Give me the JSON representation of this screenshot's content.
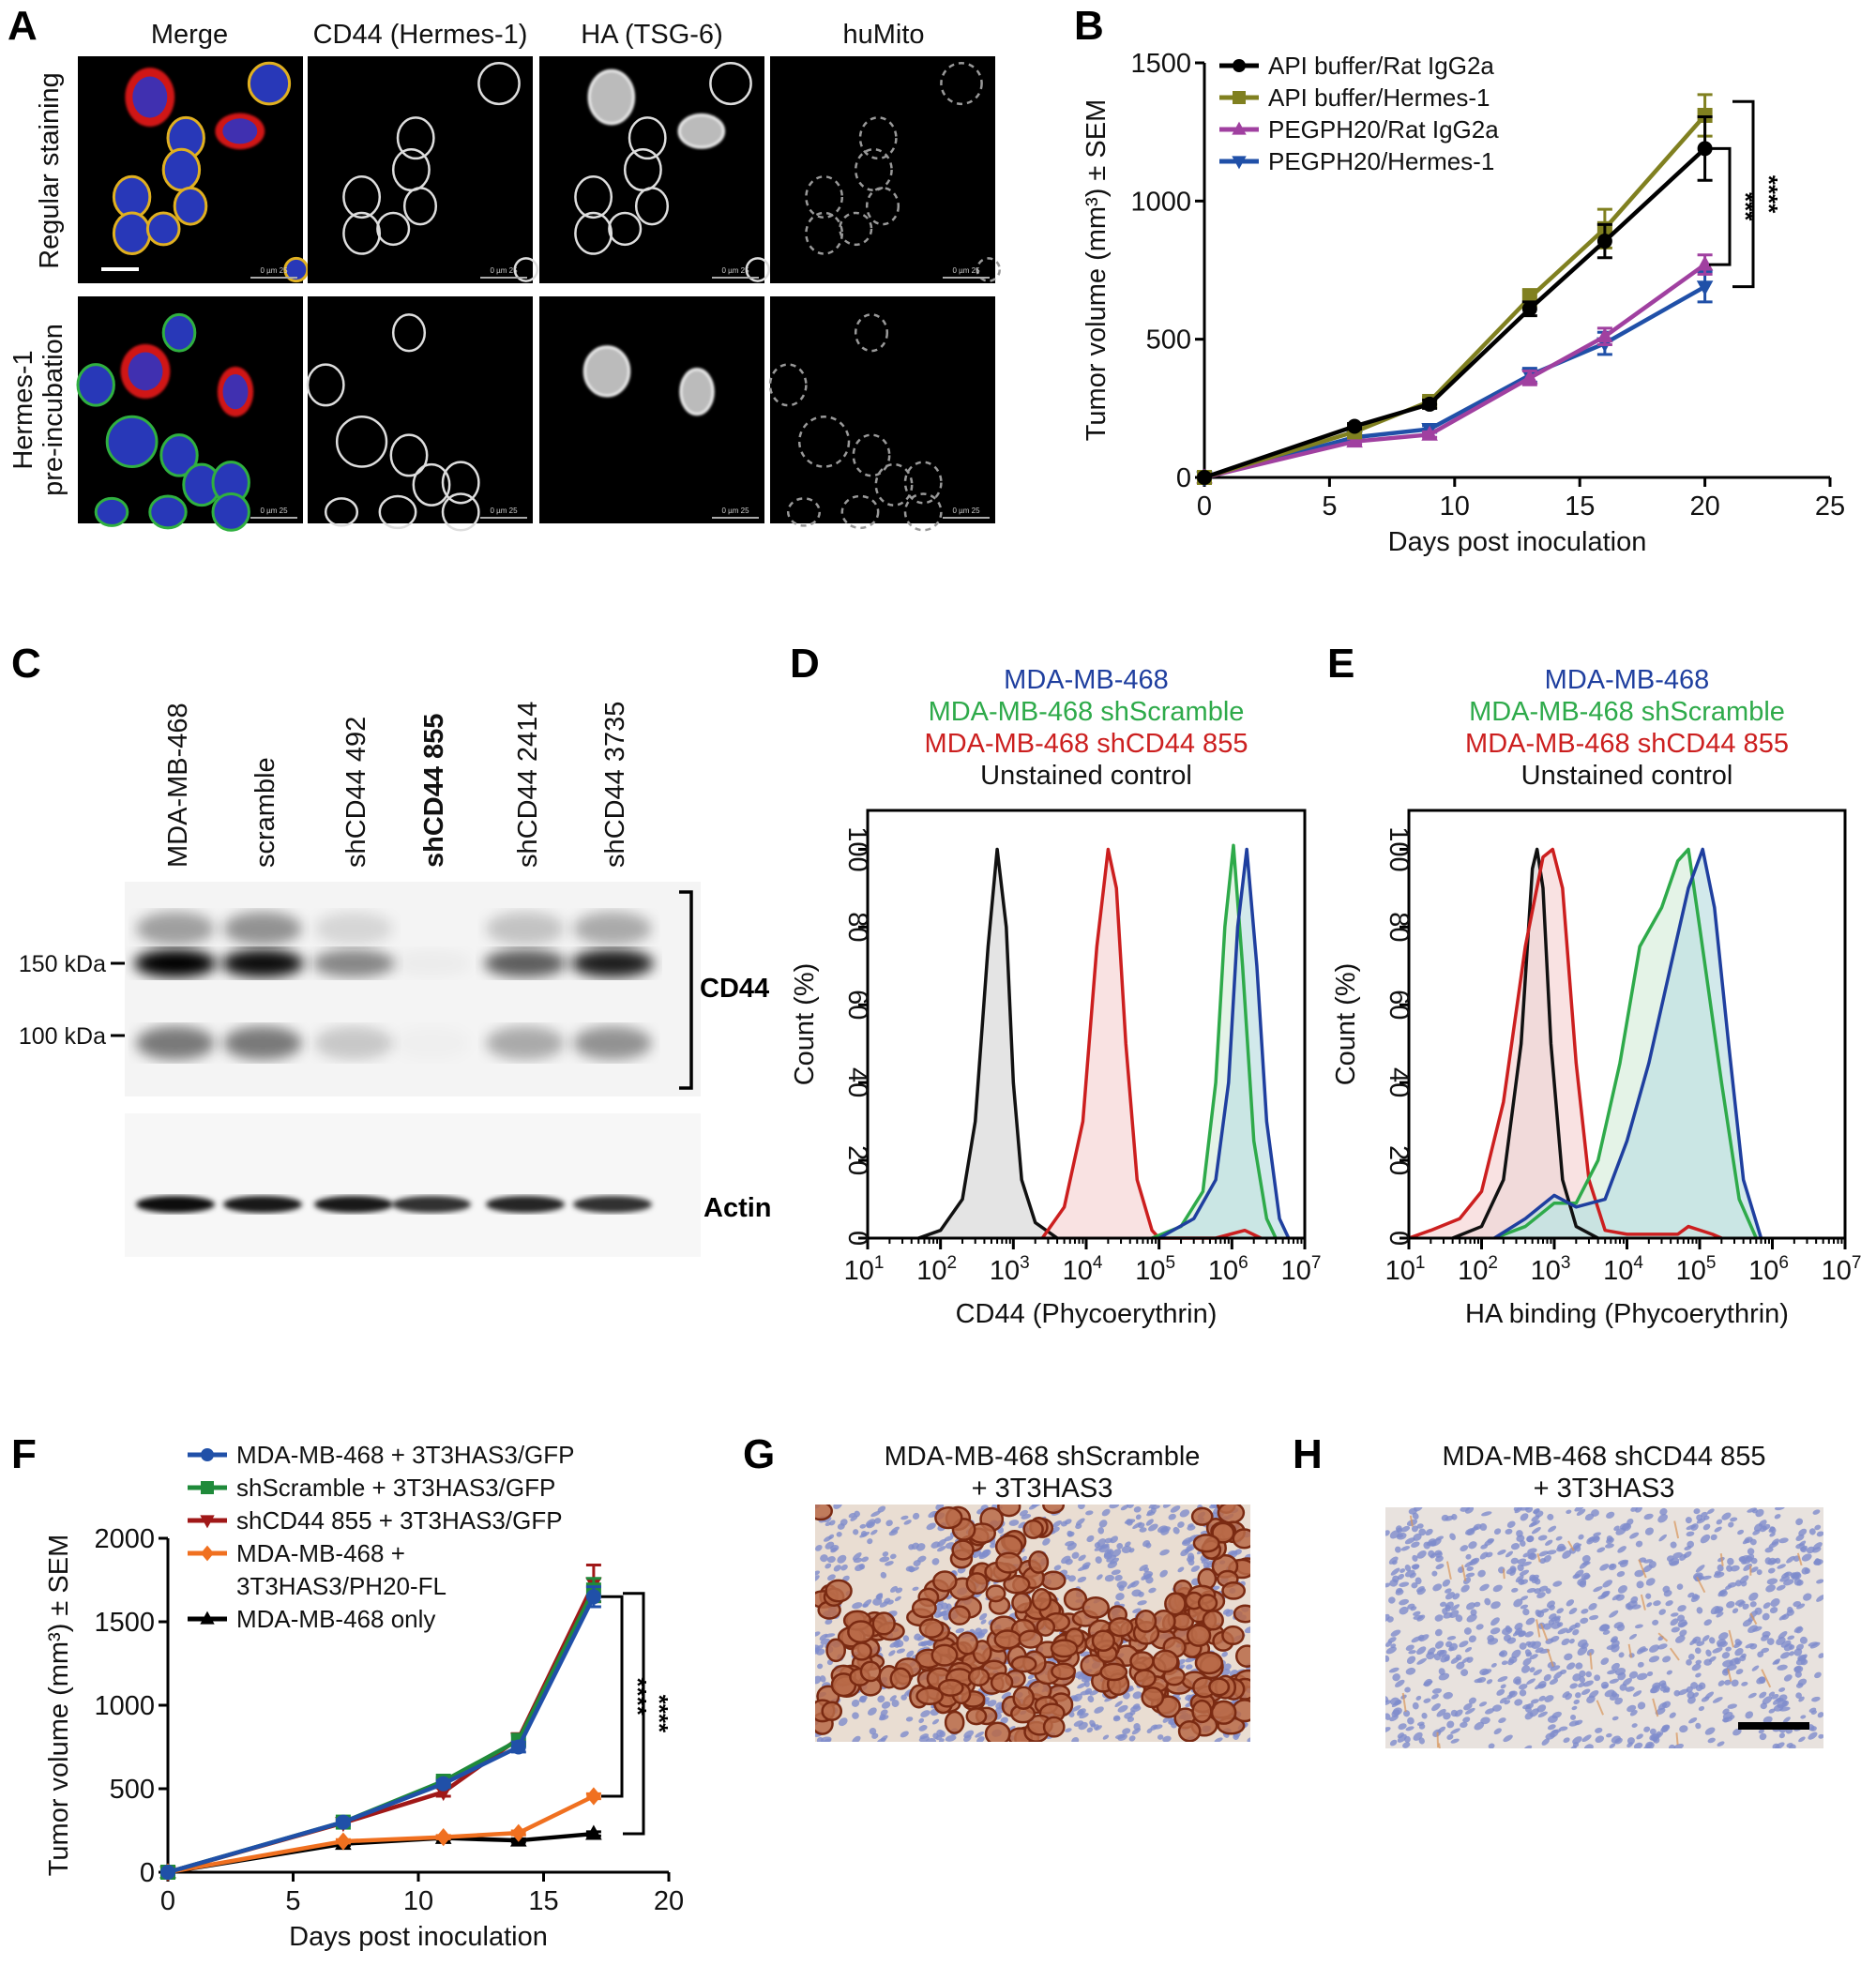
{
  "panels": {
    "A": {
      "label": "A",
      "columns": [
        "Merge",
        "CD44 (Hermes-1)",
        "HA (TSG-6)",
        "huMito"
      ],
      "rows": [
        {
          "lines": [
            "Regular staining"
          ]
        },
        {
          "lines": [
            "Hermes-1",
            "pre-incubation"
          ]
        }
      ],
      "scale_bar_text": "0   µm   25"
    },
    "B": {
      "label": "B"
    },
    "C": {
      "label": "C",
      "lanes": [
        "MDA-MB-468",
        "scramble",
        "shCD44 492",
        "shCD44 855",
        "shCD44 2414",
        "shCD44 3735"
      ],
      "bold_lane": "shCD44 855",
      "markers": [
        "150 kDa",
        "100 kDa"
      ],
      "bracket_label": "CD44",
      "loading_label": "Actin",
      "band_intensity": {
        "cd44_upper_smear": [
          0.35,
          0.4,
          0.12,
          0.0,
          0.2,
          0.3
        ],
        "cd44_150": [
          1.0,
          0.95,
          0.45,
          0.03,
          0.62,
          0.88
        ],
        "cd44_100": [
          0.5,
          0.5,
          0.18,
          0.02,
          0.3,
          0.4
        ],
        "actin": [
          0.95,
          0.9,
          0.9,
          0.8,
          0.85,
          0.8
        ]
      }
    },
    "D": {
      "label": "D",
      "title_lines": [
        {
          "text": "MDA-MB-468",
          "color": "#1f3f9f"
        },
        {
          "text": "MDA-MB-468 shScramble",
          "color": "#2eaa4a"
        },
        {
          "text": "MDA-MB-468 shCD44 855",
          "color": "#cc1f1f"
        },
        {
          "text": "Unstained control",
          "color": "#111111"
        }
      ]
    },
    "E": {
      "label": "E",
      "title_lines": [
        {
          "text": "MDA-MB-468",
          "color": "#1f3f9f"
        },
        {
          "text": "MDA-MB-468 shScramble",
          "color": "#2eaa4a"
        },
        {
          "text": "MDA-MB-468 shCD44 855",
          "color": "#cc1f1f"
        },
        {
          "text": "Unstained control",
          "color": "#111111"
        }
      ]
    },
    "F": {
      "label": "F"
    },
    "G": {
      "label": "G",
      "title_lines": [
        "MDA-MB-468 shScramble",
        "+ 3T3HAS3"
      ]
    },
    "H": {
      "label": "H",
      "title_lines": [
        "MDA-MB-468 shCD44 855",
        "+ 3T3HAS3"
      ]
    }
  },
  "chart_data": [
    {
      "panel": "B",
      "type": "line",
      "xlabel": "Days post inoculation",
      "ylabel": "Tumor volume (mm³) ± SEM",
      "xlim": [
        0,
        25
      ],
      "ylim": [
        0,
        1500
      ],
      "xticks": [
        0,
        5,
        10,
        15,
        20,
        25
      ],
      "yticks": [
        0,
        500,
        1000,
        1500
      ],
      "legend": "top-left",
      "grid": false,
      "x": [
        0,
        6,
        9,
        13,
        16,
        20
      ],
      "series": [
        {
          "name": "API buffer/Rat IgG2a",
          "color": "#000000",
          "marker": "circle",
          "values": [
            0,
            185,
            265,
            610,
            855,
            1190
          ],
          "sem": [
            0,
            10,
            15,
            25,
            60,
            115
          ]
        },
        {
          "name": "API buffer/Hermes-1",
          "color": "#808020",
          "marker": "square",
          "values": [
            0,
            165,
            275,
            650,
            900,
            1310
          ],
          "sem": [
            0,
            12,
            15,
            30,
            70,
            75
          ]
        },
        {
          "name": "PEGPH20/Rat IgG2a",
          "color": "#a040a0",
          "marker": "triangle-up",
          "values": [
            0,
            130,
            155,
            360,
            510,
            770
          ],
          "sem": [
            0,
            10,
            10,
            25,
            30,
            35
          ]
        },
        {
          "name": "PEGPH20/Hermes-1",
          "color": "#2050a8",
          "marker": "triangle-down",
          "values": [
            0,
            145,
            175,
            370,
            485,
            690
          ],
          "sem": [
            0,
            10,
            12,
            25,
            40,
            55
          ]
        }
      ],
      "significance": [
        {
          "label": "***",
          "from_series": 0,
          "to_series": 2
        },
        {
          "label": "****",
          "from_series": 1,
          "to_series": 3
        }
      ]
    },
    {
      "panel": "D",
      "type": "area",
      "xlabel": "CD44 (Phycoerythrin)",
      "ylabel": "Count (%)",
      "xscale": "log",
      "xlim": [
        10,
        10000000
      ],
      "ylim": [
        0,
        110
      ],
      "x_tick_base": "10",
      "x_tick_exponents": [
        1,
        2,
        3,
        4,
        5,
        6,
        7
      ],
      "yticks": [
        0,
        20,
        40,
        60,
        80,
        100
      ],
      "series": [
        {
          "name": "Unstained control",
          "color": "#111111",
          "fill": "#d9d9d9",
          "points": [
            [
              50,
              0
            ],
            [
              100,
              2
            ],
            [
              200,
              10
            ],
            [
              300,
              30
            ],
            [
              450,
              75
            ],
            [
              600,
              100
            ],
            [
              800,
              80
            ],
            [
              1000,
              40
            ],
            [
              1300,
              15
            ],
            [
              2000,
              4
            ],
            [
              4000,
              0
            ]
          ]
        },
        {
          "name": "MDA-MB-468 shCD44 855",
          "color": "#cc1f1f",
          "fill": "#f6d6d6",
          "points": [
            [
              2500,
              0
            ],
            [
              5000,
              8
            ],
            [
              9000,
              30
            ],
            [
              14000,
              75
            ],
            [
              20000,
              100
            ],
            [
              26000,
              90
            ],
            [
              35000,
              50
            ],
            [
              50000,
              15
            ],
            [
              80000,
              2
            ],
            [
              100000,
              0
            ],
            [
              600000,
              0
            ],
            [
              1500000,
              2
            ],
            [
              2500000,
              0
            ]
          ]
        },
        {
          "name": "MDA-MB-468 shScramble",
          "color": "#2eaa4a",
          "fill": "#d9eedd",
          "points": [
            [
              80000,
              0
            ],
            [
              200000,
              3
            ],
            [
              400000,
              12
            ],
            [
              600000,
              40
            ],
            [
              800000,
              80
            ],
            [
              1050000,
              101
            ],
            [
              1400000,
              70
            ],
            [
              2000000,
              25
            ],
            [
              3000000,
              5
            ],
            [
              4000000,
              0
            ]
          ]
        },
        {
          "name": "MDA-MB-468",
          "color": "#1f3f9f",
          "fill": "#bfe0e3",
          "points": [
            [
              100000,
              0
            ],
            [
              300000,
              5
            ],
            [
              600000,
              15
            ],
            [
              900000,
              40
            ],
            [
              1200000,
              80
            ],
            [
              1600000,
              100
            ],
            [
              2200000,
              70
            ],
            [
              3000000,
              30
            ],
            [
              4500000,
              5
            ],
            [
              6000000,
              0
            ]
          ]
        }
      ]
    },
    {
      "panel": "E",
      "type": "area",
      "xlabel": "HA binding (Phycoerythrin)",
      "ylabel": "Count (%)",
      "xscale": "log",
      "xlim": [
        10,
        10000000
      ],
      "ylim": [
        0,
        110
      ],
      "x_tick_base": "10",
      "x_tick_exponents": [
        1,
        2,
        3,
        4,
        5,
        6,
        7
      ],
      "yticks": [
        0,
        20,
        40,
        60,
        80,
        100
      ],
      "series": [
        {
          "name": "Unstained control",
          "color": "#111111",
          "fill": "#d9d9d9",
          "points": [
            [
              40,
              0
            ],
            [
              100,
              3
            ],
            [
              200,
              15
            ],
            [
              350,
              50
            ],
            [
              500,
              95
            ],
            [
              580,
              100
            ],
            [
              700,
              90
            ],
            [
              900,
              50
            ],
            [
              1300,
              15
            ],
            [
              2000,
              3
            ],
            [
              4000,
              0
            ]
          ]
        },
        {
          "name": "MDA-MB-468 shCD44 855",
          "color": "#cc1f1f",
          "fill": "#f6d6d6",
          "points": [
            [
              10,
              0
            ],
            [
              20,
              2
            ],
            [
              50,
              5
            ],
            [
              100,
              12
            ],
            [
              200,
              35
            ],
            [
              400,
              75
            ],
            [
              700,
              98
            ],
            [
              950,
              100
            ],
            [
              1300,
              90
            ],
            [
              2000,
              45
            ],
            [
              3000,
              15
            ],
            [
              5000,
              2
            ],
            [
              10000,
              1
            ],
            [
              50000,
              1
            ],
            [
              70000,
              3
            ],
            [
              150000,
              1
            ],
            [
              200000,
              0
            ]
          ]
        },
        {
          "name": "MDA-MB-468 shScramble",
          "color": "#2eaa4a",
          "fill": "#d9eedd",
          "points": [
            [
              150,
              0
            ],
            [
              400,
              3
            ],
            [
              1000,
              9
            ],
            [
              2000,
              9
            ],
            [
              4000,
              20
            ],
            [
              8000,
              45
            ],
            [
              15000,
              75
            ],
            [
              30000,
              85
            ],
            [
              50000,
              97
            ],
            [
              70000,
              100
            ],
            [
              100000,
              80
            ],
            [
              200000,
              40
            ],
            [
              350000,
              10
            ],
            [
              600000,
              0
            ]
          ]
        },
        {
          "name": "MDA-MB-468",
          "color": "#1f3f9f",
          "fill": "#bfe0e3",
          "points": [
            [
              150,
              0
            ],
            [
              400,
              5
            ],
            [
              1000,
              11
            ],
            [
              2000,
              8
            ],
            [
              5000,
              10
            ],
            [
              10000,
              25
            ],
            [
              20000,
              45
            ],
            [
              40000,
              70
            ],
            [
              70000,
              90
            ],
            [
              110000,
              100
            ],
            [
              160000,
              85
            ],
            [
              250000,
              50
            ],
            [
              400000,
              15
            ],
            [
              700000,
              0
            ]
          ]
        }
      ]
    },
    {
      "panel": "F",
      "type": "line",
      "xlabel": "Days post inoculation",
      "ylabel": "Tumor volume (mm³) ± SEM",
      "xlim": [
        0,
        20
      ],
      "ylim": [
        0,
        2000
      ],
      "xticks": [
        0,
        5,
        10,
        15,
        20
      ],
      "yticks": [
        0,
        500,
        1000,
        1500,
        2000
      ],
      "legend": "top",
      "grid": false,
      "x": [
        0,
        7,
        11,
        14,
        17
      ],
      "series": [
        {
          "name": "MDA-MB-468 + 3T3HAS3/GFP",
          "name_lines": [
            "MDA-MB-468 + 3T3HAS3/GFP"
          ],
          "color": "#2050a8",
          "marker": "circle",
          "values": [
            0,
            300,
            530,
            750,
            1650
          ],
          "sem": [
            0,
            15,
            20,
            30,
            60
          ]
        },
        {
          "name": "shScramble + 3T3HAS3/GFP",
          "name_lines": [
            "shScramble + 3T3HAS3/GFP"
          ],
          "color": "#1f8a3a",
          "marker": "square",
          "values": [
            0,
            300,
            545,
            790,
            1690
          ],
          "sem": [
            0,
            15,
            20,
            30,
            70
          ]
        },
        {
          "name": "shCD44 855 + 3T3HAS3/GFP",
          "name_lines": [
            "shCD44 855 + 3T3HAS3/GFP"
          ],
          "color": "#a01818",
          "marker": "triangle-down",
          "values": [
            0,
            295,
            480,
            800,
            1730
          ],
          "sem": [
            0,
            15,
            25,
            30,
            110
          ]
        },
        {
          "name": "MDA-MB-468 + 3T3HAS3/PH20-FL",
          "name_lines": [
            "MDA-MB-468 +",
            "3T3HAS3/PH20-FL"
          ],
          "color": "#f07020",
          "marker": "diamond",
          "values": [
            0,
            185,
            210,
            235,
            455
          ],
          "sem": [
            0,
            10,
            10,
            12,
            15
          ]
        },
        {
          "name": "MDA-MB-468 only",
          "name_lines": [
            "MDA-MB-468 only"
          ],
          "color": "#000000",
          "marker": "triangle-up",
          "values": [
            0,
            170,
            205,
            190,
            230
          ],
          "sem": [
            0,
            10,
            10,
            10,
            12
          ]
        }
      ],
      "significance": [
        {
          "label": "****",
          "from_series": 0,
          "to_series": 3
        },
        {
          "label": "****",
          "from_series": 0,
          "to_series": 4
        }
      ]
    }
  ]
}
